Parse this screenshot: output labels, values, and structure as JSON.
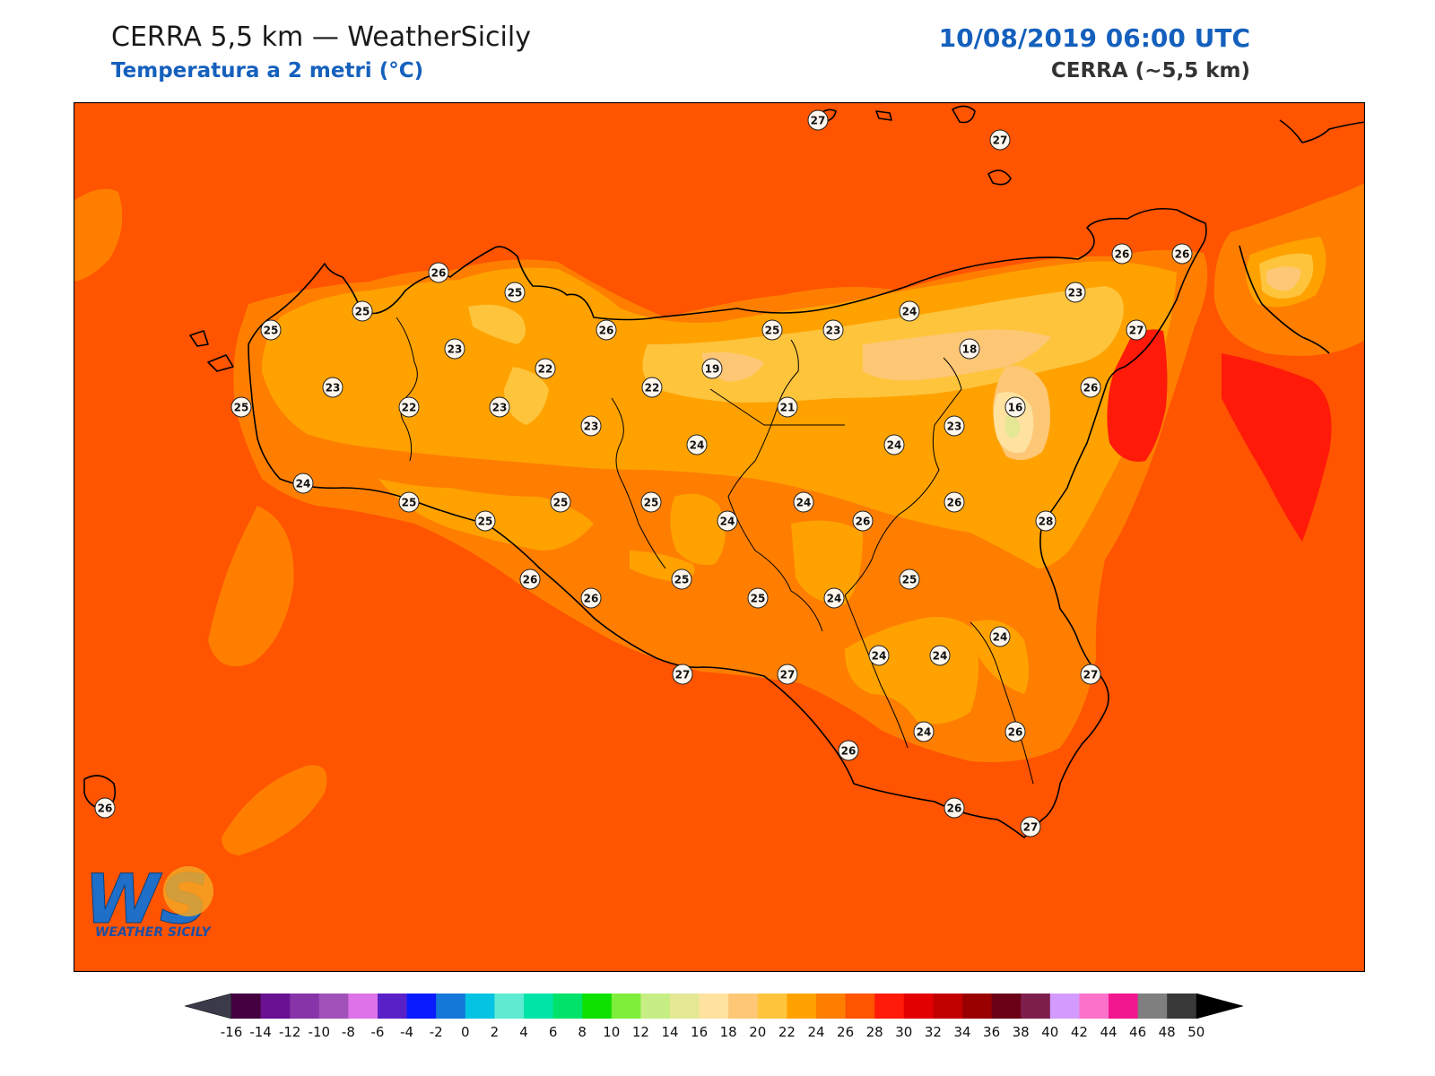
{
  "header": {
    "title": "CERRA 5,5 km — WeatherSicily",
    "subtitle": "Temperatura a 2 metri (°C)",
    "datetime": "10/08/2019 06:00 UTC",
    "model": "CERRA (~5,5 km)"
  },
  "logo": {
    "text": "WS",
    "tagline": "WEATHER SICILY"
  },
  "colorbar": {
    "ticks": [
      "-16",
      "-14",
      "-12",
      "-10",
      "-8",
      "-6",
      "-4",
      "-2",
      "0",
      "2",
      "4",
      "6",
      "8",
      "10",
      "12",
      "14",
      "16",
      "18",
      "20",
      "22",
      "24",
      "26",
      "28",
      "30",
      "32",
      "34",
      "36",
      "38",
      "40",
      "42",
      "44",
      "46",
      "48",
      "50"
    ],
    "colors": [
      "#44003f",
      "#6a1191",
      "#8634a8",
      "#a052b8",
      "#de72e8",
      "#5a20c8",
      "#0a1cff",
      "#1478d8",
      "#04c3e3",
      "#5eebd2",
      "#00e4a8",
      "#00e26a",
      "#0ee000",
      "#7fee3a",
      "#c6ee85",
      "#e4e794",
      "#ffe2a0",
      "#fdc776",
      "#fec43c",
      "#ffa200",
      "#ff7e00",
      "#ff5400",
      "#ff1a0a",
      "#e30000",
      "#c20000",
      "#9a0000",
      "#6a0016",
      "#7e1f4b",
      "#d49bfe",
      "#fc71c9",
      "#f2178e",
      "#7f7f7f",
      "#383838"
    ],
    "under_color": "#3a3a4a",
    "over_color": "#000000"
  },
  "fill_colors": {
    "sea": "#ff5400",
    "t26": "#ff7e00",
    "t24": "#ffa200",
    "t22": "#fec43c",
    "t20": "#fdc776",
    "t18": "#ffe2a0",
    "t16": "#e4e794",
    "t28": "#ff1a0a"
  },
  "stations": [
    {
      "id": "s1",
      "value": "27"
    },
    {
      "id": "s2",
      "value": "27"
    },
    {
      "id": "s3",
      "value": "26"
    },
    {
      "id": "s4",
      "value": "26"
    },
    {
      "id": "s5",
      "value": "26"
    },
    {
      "id": "s6",
      "value": "25"
    },
    {
      "id": "s7",
      "value": "23"
    },
    {
      "id": "s8",
      "value": "25"
    },
    {
      "id": "s9",
      "value": "25"
    },
    {
      "id": "s10",
      "value": "26"
    },
    {
      "id": "s11",
      "value": "25"
    },
    {
      "id": "s12",
      "value": "23"
    },
    {
      "id": "s13",
      "value": "24"
    },
    {
      "id": "s14",
      "value": "27"
    },
    {
      "id": "s15",
      "value": "23"
    },
    {
      "id": "s16",
      "value": "18"
    },
    {
      "id": "s17",
      "value": "19"
    },
    {
      "id": "s18",
      "value": "22"
    },
    {
      "id": "s19",
      "value": "23"
    },
    {
      "id": "s20",
      "value": "22"
    },
    {
      "id": "s21",
      "value": "22"
    },
    {
      "id": "s22",
      "value": "25"
    },
    {
      "id": "s23",
      "value": "23"
    },
    {
      "id": "s24",
      "value": "21"
    },
    {
      "id": "s25",
      "value": "16"
    },
    {
      "id": "s26",
      "value": "26"
    },
    {
      "id": "s27",
      "value": "23"
    },
    {
      "id": "s28",
      "value": "23"
    },
    {
      "id": "s29",
      "value": "24"
    },
    {
      "id": "s30",
      "value": "24"
    },
    {
      "id": "s31",
      "value": "24"
    },
    {
      "id": "s32",
      "value": "25"
    },
    {
      "id": "s33",
      "value": "25"
    },
    {
      "id": "s34",
      "value": "25"
    },
    {
      "id": "s35",
      "value": "25"
    },
    {
      "id": "s36",
      "value": "24"
    },
    {
      "id": "s37",
      "value": "24"
    },
    {
      "id": "s38",
      "value": "26"
    },
    {
      "id": "s39",
      "value": "26"
    },
    {
      "id": "s40",
      "value": "28"
    },
    {
      "id": "s41",
      "value": "26"
    },
    {
      "id": "s42",
      "value": "25"
    },
    {
      "id": "s43",
      "value": "25"
    },
    {
      "id": "s44",
      "value": "25"
    },
    {
      "id": "s45",
      "value": "24"
    },
    {
      "id": "s46",
      "value": "26"
    },
    {
      "id": "s47",
      "value": "27"
    },
    {
      "id": "s48",
      "value": "27"
    },
    {
      "id": "s49",
      "value": "24"
    },
    {
      "id": "s50",
      "value": "24"
    },
    {
      "id": "s51",
      "value": "24"
    },
    {
      "id": "s52",
      "value": "27"
    },
    {
      "id": "s53",
      "value": "24"
    },
    {
      "id": "s54",
      "value": "26"
    },
    {
      "id": "s55",
      "value": "26"
    },
    {
      "id": "s56",
      "value": "26"
    },
    {
      "id": "s57",
      "value": "27"
    },
    {
      "id": "s58",
      "value": "26"
    }
  ]
}
